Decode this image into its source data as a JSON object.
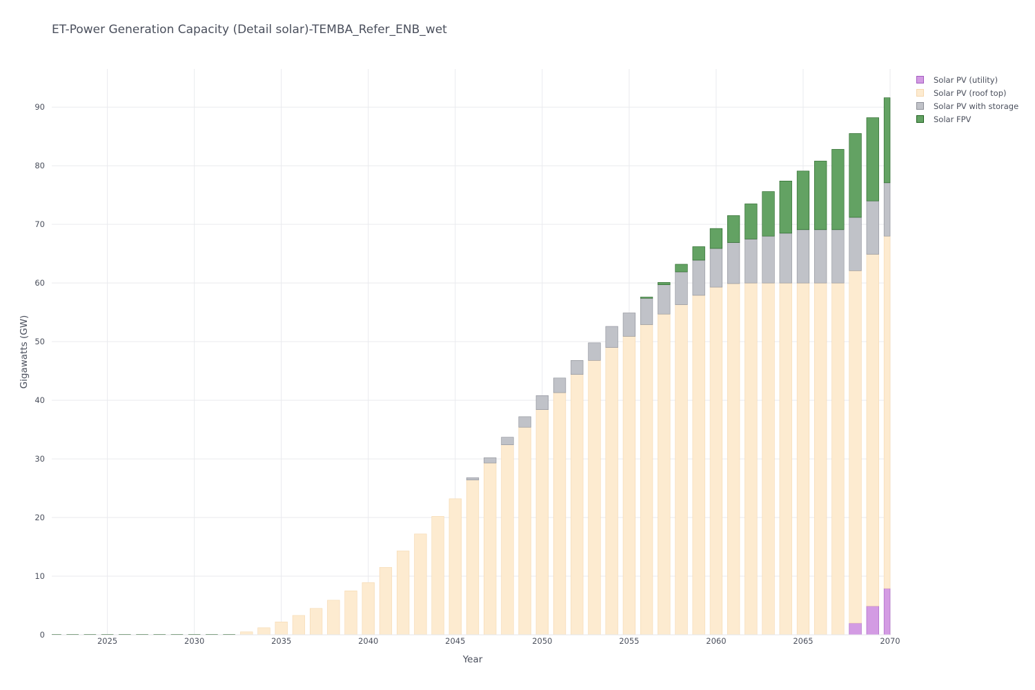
{
  "chart_data": {
    "type": "bar",
    "stacked": true,
    "title": "ET-Power Generation Capacity (Detail solar)-TEMBA_Refer_ENB_wet",
    "xlabel": "Year",
    "ylabel": "Gigawatts (GW)",
    "xlim": [
      2022,
      2070
    ],
    "ylim": [
      0,
      96.5
    ],
    "x_ticks": [
      2025,
      2030,
      2035,
      2040,
      2045,
      2050,
      2055,
      2060,
      2065,
      2070
    ],
    "y_ticks": [
      0,
      10,
      20,
      30,
      40,
      50,
      60,
      70,
      80,
      90
    ],
    "grid": true,
    "legend_position": "top-right",
    "x": [
      2022,
      2023,
      2024,
      2025,
      2026,
      2027,
      2028,
      2029,
      2030,
      2031,
      2032,
      2033,
      2034,
      2035,
      2036,
      2037,
      2038,
      2039,
      2040,
      2041,
      2042,
      2043,
      2044,
      2045,
      2046,
      2047,
      2048,
      2049,
      2050,
      2051,
      2052,
      2053,
      2054,
      2055,
      2056,
      2057,
      2058,
      2059,
      2060,
      2061,
      2062,
      2063,
      2064,
      2065,
      2066,
      2067,
      2068,
      2069,
      2070
    ],
    "series": [
      {
        "name": "Solar PV (utility)",
        "color": "#d39be3",
        "border": "#a35bc0",
        "values": [
          0,
          0,
          0,
          0,
          0,
          0,
          0,
          0,
          0,
          0,
          0,
          0,
          0,
          0,
          0,
          0,
          0,
          0,
          0,
          0,
          0,
          0,
          0,
          0,
          0,
          0,
          0,
          0,
          0,
          0,
          0,
          0,
          0,
          0,
          0,
          0,
          0,
          0,
          0,
          0,
          0,
          0,
          0,
          0,
          0,
          0,
          2.0,
          4.9,
          7.9
        ]
      },
      {
        "name": "Solar PV (roof top)",
        "color": "#fdebd0",
        "border": "#f5d7ae",
        "values": [
          0,
          0,
          0,
          0,
          0,
          0,
          0,
          0,
          0,
          0,
          0,
          0.5,
          1.2,
          2.2,
          3.3,
          4.5,
          5.9,
          7.5,
          8.9,
          11.5,
          14.3,
          17.2,
          20.2,
          23.2,
          26.4,
          29.3,
          32.4,
          35.4,
          38.4,
          41.3,
          44.4,
          46.8,
          49.0,
          50.9,
          52.9,
          54.7,
          56.3,
          57.9,
          59.3,
          59.9,
          60.0,
          60.0,
          60.0,
          60.0,
          60.0,
          60.0,
          60.1,
          60.0,
          60.1
        ]
      },
      {
        "name": "Solar PV with storage",
        "color": "#c0c2c8",
        "border": "#8b8e96",
        "values": [
          0,
          0,
          0,
          0,
          0,
          0,
          0,
          0,
          0,
          0,
          0,
          0,
          0,
          0,
          0,
          0,
          0,
          0,
          0,
          0,
          0,
          0,
          0,
          0,
          0.4,
          0.9,
          1.3,
          1.8,
          2.4,
          2.5,
          2.4,
          3.0,
          3.6,
          4.0,
          4.5,
          5.0,
          5.6,
          6.0,
          6.6,
          7.0,
          7.5,
          8.0,
          8.5,
          9.1,
          9.1,
          9.1,
          9.1,
          9.1,
          9.1
        ]
      },
      {
        "name": "Solar FPV",
        "color": "#63a263",
        "border": "#1f5f1f",
        "values": [
          0,
          0,
          0,
          0,
          0,
          0,
          0,
          0,
          0,
          0,
          0,
          0,
          0,
          0,
          0,
          0,
          0,
          0,
          0,
          0,
          0,
          0,
          0,
          0,
          0,
          0,
          0,
          0,
          0,
          0,
          0,
          0,
          0,
          0,
          0.2,
          0.4,
          1.3,
          2.3,
          3.4,
          4.6,
          6.0,
          7.6,
          8.9,
          10.0,
          11.7,
          13.7,
          14.3,
          14.2,
          14.5
        ]
      }
    ]
  }
}
